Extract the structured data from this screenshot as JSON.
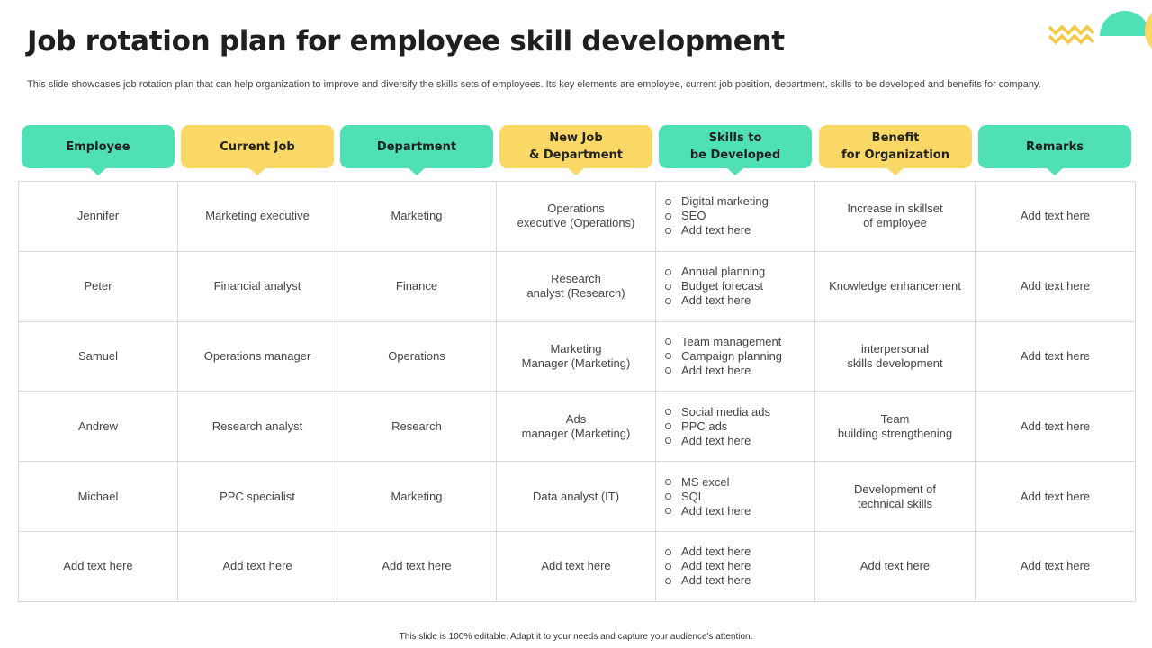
{
  "slide": {
    "title": "Job rotation plan for employee skill development",
    "subtitle": "This slide showcases job rotation plan that can help organization to improve and diversify the skills sets of employees. Its key elements are employee, current job position, department, skills to be developed and benefits for company.",
    "footer": "This slide is 100% editable.  Adapt it to your needs and capture your audience's attention."
  },
  "colors": {
    "green": "#4fe0b6",
    "yellow": "#fad866",
    "border": "#d9d9d9"
  },
  "headers": [
    {
      "label": "Employee",
      "color": "green"
    },
    {
      "label": "Current Job",
      "color": "yellow"
    },
    {
      "label": "Department",
      "color": "green"
    },
    {
      "label": "New Job\n& Department",
      "color": "yellow"
    },
    {
      "label": "Skills to\nbe Developed",
      "color": "green"
    },
    {
      "label": "Benefit\nfor Organization",
      "color": "yellow"
    },
    {
      "label": "Remarks",
      "color": "green"
    }
  ],
  "rows": [
    {
      "employee": "Jennifer",
      "current_job": "Marketing executive",
      "department": "Marketing",
      "new_job": "Operations\nexecutive  (Operations)",
      "skills": [
        "Digital marketing",
        "SEO",
        "Add text here"
      ],
      "benefit": "Increase  in skillset\nof employee",
      "remarks": "Add text here"
    },
    {
      "employee": "Peter",
      "current_job": "Financial analyst",
      "department": "Finance",
      "new_job": "Research\nanalyst (Research)",
      "skills": [
        "Annual planning",
        "Budget forecast",
        "Add text here"
      ],
      "benefit": "Knowledge  enhancement",
      "remarks": "Add text here"
    },
    {
      "employee": "Samuel",
      "current_job": "Operations manager",
      "department": "Operations",
      "new_job": "Marketing\nManager  (Marketing)",
      "skills": [
        "Team management",
        "Campaign planning",
        "Add text here"
      ],
      "benefit": "interpersonal\nskills development",
      "remarks": "Add text here"
    },
    {
      "employee": "Andrew",
      "current_job": "Research analyst",
      "department": "Research",
      "new_job": "Ads\nmanager  (Marketing)",
      "skills": [
        "Social media ads",
        "PPC ads",
        "Add text here"
      ],
      "benefit": "Team\nbuilding strengthening",
      "remarks": "Add text here"
    },
    {
      "employee": "Michael",
      "current_job": "PPC specialist",
      "department": "Marketing",
      "new_job": "Data analyst (IT)",
      "skills": [
        "MS excel",
        "SQL",
        "Add text here"
      ],
      "benefit": "Development  of\ntechnical skills",
      "remarks": "Add text here"
    },
    {
      "employee": "Add text here",
      "current_job": "Add text here",
      "department": "Add text here",
      "new_job": "Add text here",
      "skills": [
        "Add text here",
        "Add text here",
        "Add text here"
      ],
      "benefit": "Add text here",
      "remarks": "Add text here"
    }
  ]
}
